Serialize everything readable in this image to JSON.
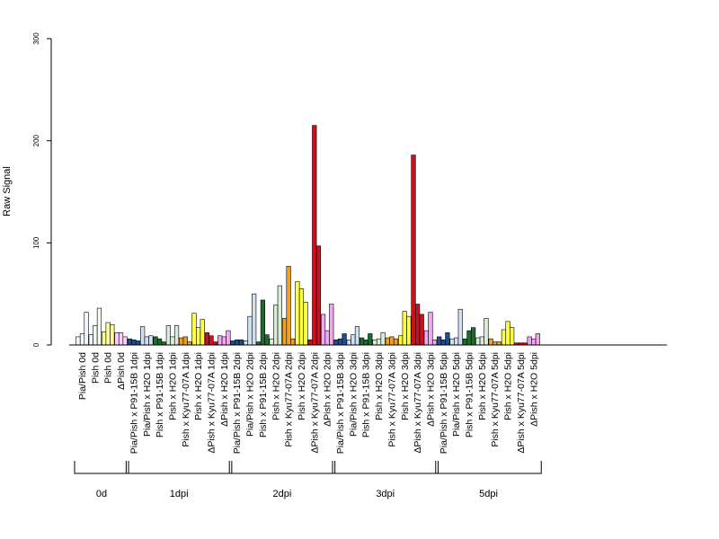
{
  "chart_data": {
    "type": "bar",
    "ylabel": "Raw Signal",
    "ylim": [
      0,
      300
    ],
    "yticks": [
      0,
      100,
      200,
      300
    ],
    "grid": false,
    "legend": "none",
    "categories": [
      "Pia/Pish 0d",
      "Pish 0d",
      "Pish 0d",
      "ΔPish 0d",
      "Pia/Pish x P91-15B 1dpi",
      "Pia/Pish x H2O 1dpi",
      "Pish x P91-15B 1dpi",
      "Pish x H2O 1dpi",
      "Pish x Kyu77-07A 1dpi",
      "Pish x H2O 1dpi",
      "ΔPish x Kyu77-07A 1dpi",
      "ΔPish x H2O 1dpi",
      "Pia/Pish x P91-15B 2dpi",
      "Pia/Pish x H2O 2dpi",
      "Pish x P91-15B 2dpi",
      "Pish x H2O 2dpi",
      "Pish x Kyu77-07A 2dpi",
      "Pish x H2O 2dpi",
      "ΔPish x Kyu77-07A 2dpi",
      "ΔPish x H2O 2dpi",
      "Pia/Pish x P91-15B 3dpi",
      "Pia/Pish x H2O 3dpi",
      "Pish x P91-15B 3dpi",
      "Pish x H2O 3dpi",
      "Pish x Kyu77-07A 3dpi",
      "Pish x H2O 3dpi",
      "ΔPish x Kyu77-07A 3dpi",
      "ΔPish x H2O 3dpi",
      "Pia/Pish x P91-15B 5dpi",
      "Pia/Pish x H2O 5dpi",
      "Pish x P91-15B 5dpi",
      "Pish x H2O 5dpi",
      "Pish x Kyu77-07A 5dpi",
      "Pish x H2O 5dpi",
      "ΔPish x Kyu77-07A 5dpi",
      "ΔPish x H2O 5dpi"
    ],
    "colors": [
      "#f2f7fc",
      "#f2f9f2",
      "#ffff99",
      "#ffccff",
      "#1f4e8c",
      "#cfe0f0",
      "#1e6b2e",
      "#d8ecd8",
      "#f0a020",
      "#ffff44",
      "#cc1020",
      "#f0a8f0",
      "#1f4e8c",
      "#cfe0f0",
      "#1e6b2e",
      "#d8ecd8",
      "#f0a020",
      "#ffff44",
      "#cc1020",
      "#f0a8f0",
      "#1f4e8c",
      "#cfe0f0",
      "#1e6b2e",
      "#d8ecd8",
      "#f0a020",
      "#ffff44",
      "#cc1020",
      "#f0a8f0",
      "#1f4e8c",
      "#cfe0f0",
      "#1e6b2e",
      "#d8ecd8",
      "#f0a020",
      "#ffff44",
      "#cc1020",
      "#f0a8f0"
    ],
    "values": [
      [
        8,
        11,
        32
      ],
      [
        10,
        19,
        36
      ],
      [
        13,
        22,
        20
      ],
      [
        12,
        12,
        8
      ],
      [
        6,
        5,
        4
      ],
      [
        18,
        8,
        9
      ],
      [
        8,
        6,
        3
      ],
      [
        19,
        8,
        19
      ],
      [
        7,
        8,
        3
      ],
      [
        31,
        17,
        25
      ],
      [
        12,
        9,
        3
      ],
      [
        9,
        8,
        14
      ],
      [
        4,
        5,
        5
      ],
      [
        4,
        28,
        50
      ],
      [
        3,
        44,
        10
      ],
      [
        6,
        39,
        58
      ],
      [
        26,
        77,
        6
      ],
      [
        62,
        55,
        42
      ],
      [
        5,
        215,
        97
      ],
      [
        30,
        14,
        40
      ],
      [
        5,
        6,
        11
      ],
      [
        5,
        10,
        18
      ],
      [
        7,
        5,
        11
      ],
      [
        5,
        6,
        12
      ],
      [
        7,
        8,
        6
      ],
      [
        9,
        33,
        28
      ],
      [
        186,
        40,
        30
      ],
      [
        14,
        32,
        5
      ],
      [
        8,
        5,
        12
      ],
      [
        6,
        7,
        35
      ],
      [
        6,
        14,
        17
      ],
      [
        7,
        8,
        26
      ],
      [
        6,
        3,
        3
      ],
      [
        15,
        23,
        17
      ],
      [
        2,
        2,
        2
      ],
      [
        8,
        6,
        11
      ]
    ],
    "groups": [
      {
        "label": "0d",
        "from": 0,
        "to": 3
      },
      {
        "label": "1dpi",
        "from": 4,
        "to": 11
      },
      {
        "label": "2dpi",
        "from": 12,
        "to": 19
      },
      {
        "label": "3dpi",
        "from": 20,
        "to": 27
      },
      {
        "label": "5dpi",
        "from": 28,
        "to": 35
      }
    ]
  }
}
